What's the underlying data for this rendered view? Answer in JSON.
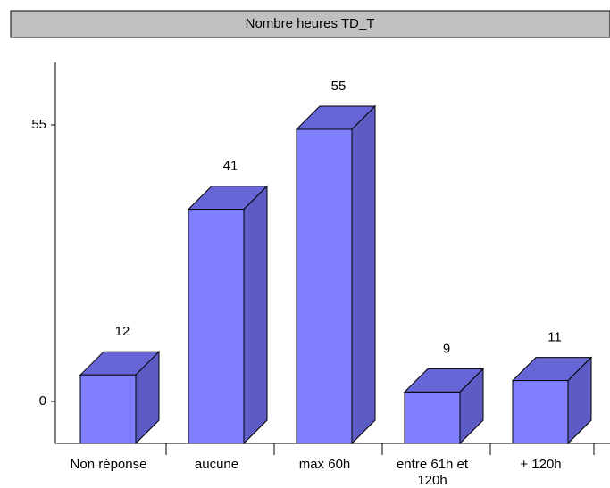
{
  "chart_data": {
    "type": "bar3d",
    "title": "Nombre heures TD_T",
    "categories": [
      "Non réponse",
      "aucune",
      "max 60h",
      "entre 61h et 120h",
      "+ 120h"
    ],
    "values": [
      12,
      41,
      55,
      9,
      11
    ],
    "color": "#8080ff",
    "ylim": [
      0,
      55
    ],
    "yticks": [
      0,
      55
    ]
  }
}
